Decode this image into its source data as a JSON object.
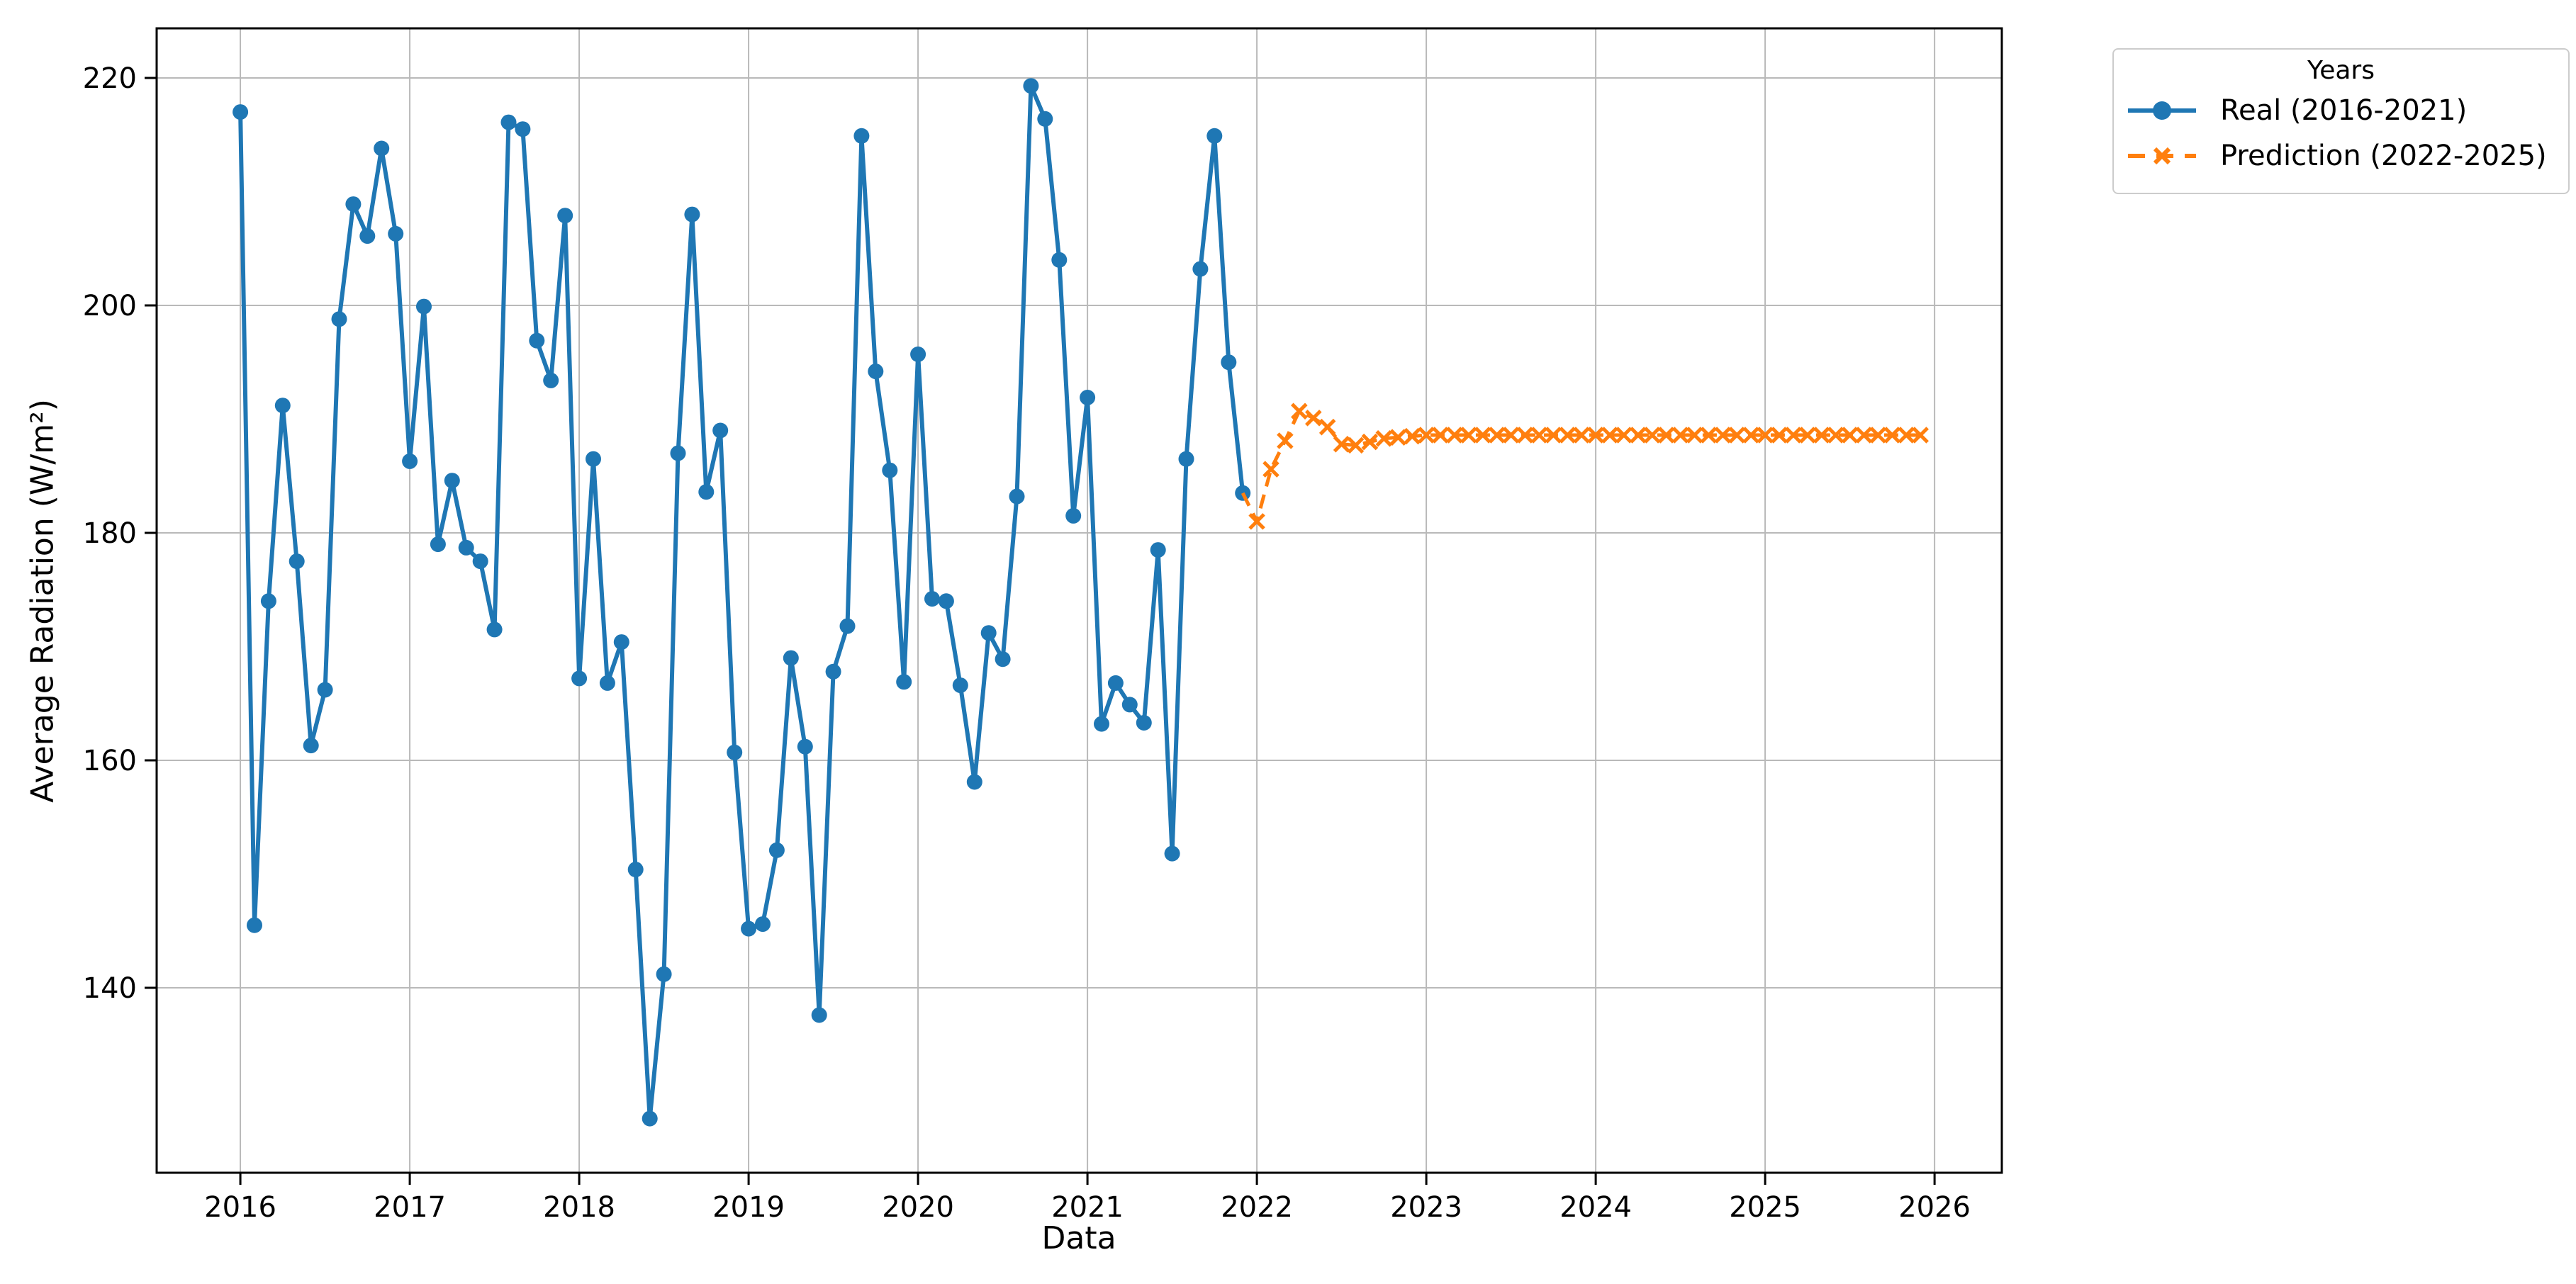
{
  "figure": {
    "xlabel": "Data",
    "ylabel": "Average Radiation (W/m²)",
    "legend": {
      "title": "Years",
      "entries": [
        {
          "label": "Real (2016-2021)",
          "style": "solid-circle"
        },
        {
          "label": "Prediction (2022-2025)",
          "style": "dashed-x"
        }
      ]
    }
  },
  "colors": {
    "real": "#1f77b4",
    "prediction": "#ff7f0e",
    "grid": "#b9b9b9",
    "spine": "#000000",
    "background": "#ffffff",
    "legend_border": "#cccccc"
  },
  "chart_data": {
    "type": "line",
    "title": "",
    "xlabel": "Data",
    "ylabel": "Average Radiation (W/m²)",
    "grid": true,
    "legend_position": "outside-upper-right",
    "legend_title": "Years",
    "x_ticks": [
      2016,
      2017,
      2018,
      2019,
      2020,
      2021,
      2022,
      2023,
      2024,
      2025,
      2026
    ],
    "y_ticks": [
      140,
      160,
      180,
      200,
      220
    ],
    "xlim": [
      2015.506,
      2026.397
    ],
    "ylim": [
      123.74,
      224.36
    ],
    "x_unit": "monthly (decimal years)",
    "series": [
      {
        "name": "Real (2016-2021)",
        "line": "solid",
        "marker": "circle",
        "start_year": 2016,
        "monthly_values": [
          217.0,
          145.5,
          174.0,
          191.2,
          177.5,
          161.3,
          166.2,
          198.8,
          208.9,
          206.1,
          213.8,
          206.3,
          186.3,
          199.9,
          179.0,
          184.6,
          178.7,
          177.5,
          171.5,
          216.1,
          215.5,
          196.9,
          193.4,
          207.9,
          167.2,
          186.5,
          166.8,
          170.4,
          150.4,
          128.5,
          141.2,
          187.0,
          208.0,
          183.6,
          189.0,
          160.7,
          145.2,
          145.6,
          152.1,
          169.0,
          161.2,
          137.6,
          167.8,
          171.8,
          214.9,
          194.2,
          185.5,
          166.9,
          195.7,
          174.2,
          174.0,
          166.6,
          158.1,
          171.2,
          168.9,
          183.2,
          219.3,
          216.4,
          204.0,
          181.5,
          191.9,
          163.2,
          166.8,
          164.9,
          163.3,
          178.5,
          151.8,
          186.5,
          203.2,
          214.9,
          195.0,
          183.5
        ]
      },
      {
        "name": "Prediction (2022-2025)",
        "line": "dashed",
        "marker": "x",
        "start_year": 2022,
        "connects_from_previous": true,
        "monthly_values": [
          181.0,
          185.6,
          188.1,
          190.7,
          190.1,
          189.3,
          187.8,
          187.7,
          188.0,
          188.3,
          188.4,
          188.5,
          188.6,
          188.6,
          188.6,
          188.6,
          188.6,
          188.6,
          188.6,
          188.6,
          188.6,
          188.6,
          188.6,
          188.6,
          188.6,
          188.6,
          188.6,
          188.6,
          188.6,
          188.6,
          188.6,
          188.6,
          188.6,
          188.6,
          188.6,
          188.6,
          188.6,
          188.6,
          188.6,
          188.6,
          188.6,
          188.6,
          188.6,
          188.6,
          188.6,
          188.6,
          188.6,
          188.6
        ]
      }
    ]
  }
}
